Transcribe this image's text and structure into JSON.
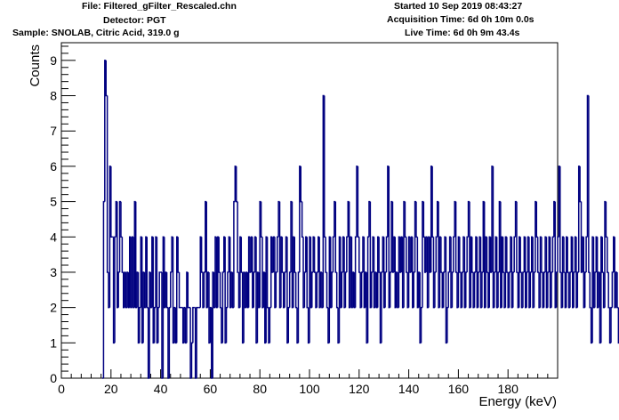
{
  "header": {
    "file": "File: Filtered_gFilter_Rescaled.chn",
    "detector": "Detector: PGT",
    "sample": "Sample: SNOLAB, Citric Acid, 319.0 g",
    "started": "Started 10 Sep 2019 08:43:27",
    "acquisition": "Acquisition Time: 6d 0h 10m 0.0s",
    "live": "Live Time: 6d 0h 9m 43.4s"
  },
  "chart_data": {
    "type": "histogram",
    "xlabel": "Energy (keV)",
    "ylabel": "Counts",
    "xlim": [
      0,
      200
    ],
    "ylim": [
      0,
      9.5
    ],
    "x_ticks": [
      0,
      20,
      40,
      60,
      80,
      100,
      120,
      140,
      160,
      180
    ],
    "y_ticks": [
      0,
      1,
      2,
      3,
      4,
      5,
      6,
      7,
      8,
      9
    ],
    "bin_width": 0.5,
    "bin_start": 16.5,
    "line_color": "#000080",
    "values": [
      0,
      5,
      9,
      8,
      3,
      2,
      6,
      4,
      4,
      1,
      4,
      5,
      2,
      3,
      5,
      4,
      3,
      2,
      3,
      2,
      3,
      2,
      4,
      2,
      4,
      2,
      5,
      2,
      3,
      1,
      2,
      4,
      1,
      3,
      2,
      4,
      2,
      0,
      3,
      2,
      4,
      1,
      2,
      4,
      1,
      2,
      3,
      3,
      0,
      4,
      2,
      3,
      2,
      0,
      2,
      3,
      4,
      1,
      2,
      1,
      4,
      3,
      2,
      2,
      2,
      1,
      2,
      1,
      3,
      2,
      2,
      0,
      1,
      2,
      2,
      0,
      2,
      2,
      2,
      4,
      3,
      2,
      3,
      5,
      2,
      3,
      1,
      2,
      0,
      3,
      2,
      4,
      2,
      4,
      3,
      2,
      1,
      3,
      4,
      1,
      2,
      3,
      4,
      2,
      3,
      2,
      5,
      6,
      5,
      3,
      2,
      4,
      3,
      1,
      3,
      2,
      3,
      2,
      4,
      3,
      4,
      2,
      3,
      4,
      1,
      3,
      2,
      5,
      4,
      2,
      3,
      1,
      4,
      2,
      1,
      2,
      4,
      3,
      4,
      2,
      3,
      4,
      5,
      2,
      4,
      3,
      2,
      3,
      4,
      1,
      2,
      3,
      5,
      2,
      4,
      3,
      2,
      1,
      3,
      6,
      5,
      4,
      2,
      3,
      4,
      2,
      1,
      4,
      2,
      3,
      4,
      3,
      2,
      3,
      4,
      2,
      3,
      2,
      8,
      4,
      3,
      2,
      1,
      4,
      2,
      3,
      4,
      5,
      3,
      2,
      1,
      4,
      2,
      3,
      4,
      2,
      3,
      4,
      5,
      2,
      4,
      2,
      3,
      2,
      4,
      6,
      4,
      3,
      2,
      3,
      4,
      2,
      3,
      1,
      4,
      5,
      2,
      3,
      4,
      2,
      3,
      2,
      4,
      3,
      1,
      3,
      4,
      2,
      3,
      4,
      6,
      2,
      3,
      5,
      3,
      4,
      2,
      3,
      2,
      4,
      3,
      4,
      2,
      5,
      4,
      3,
      2,
      4,
      3,
      4,
      2,
      3,
      5,
      4,
      2,
      3,
      1,
      2,
      5,
      4,
      3,
      4,
      2,
      4,
      3,
      6,
      4,
      2,
      3,
      4,
      5,
      2,
      4,
      3,
      2,
      3,
      4,
      1,
      2,
      3,
      4,
      2,
      3,
      4,
      5,
      3,
      2,
      4,
      3,
      2,
      3,
      4,
      2,
      3,
      4,
      5,
      2,
      4,
      3,
      2,
      3,
      4,
      2,
      3,
      4,
      2,
      3,
      5,
      2,
      4,
      3,
      2,
      4,
      3,
      6,
      2,
      3,
      4,
      2,
      3,
      5,
      2,
      4,
      3,
      2,
      4,
      3,
      2,
      3,
      4,
      2,
      3,
      4,
      5,
      3,
      2,
      4,
      3,
      2,
      3,
      4,
      2,
      3,
      4,
      2,
      3,
      4,
      2,
      3,
      5,
      4,
      3,
      2,
      4,
      3,
      2,
      3,
      4,
      2,
      3,
      4,
      2,
      3,
      4,
      5,
      2,
      3,
      4,
      6,
      3,
      2,
      4,
      3,
      2,
      4,
      3,
      2,
      3,
      4,
      2,
      3,
      4,
      2,
      3,
      6,
      5,
      3,
      4,
      2,
      3,
      4,
      8,
      3,
      2,
      1,
      4,
      2,
      3,
      4,
      2,
      3,
      1,
      4,
      3,
      2,
      5,
      4,
      3,
      2,
      1,
      2,
      3,
      4,
      2,
      3,
      2,
      1,
      4,
      3,
      2
    ]
  }
}
